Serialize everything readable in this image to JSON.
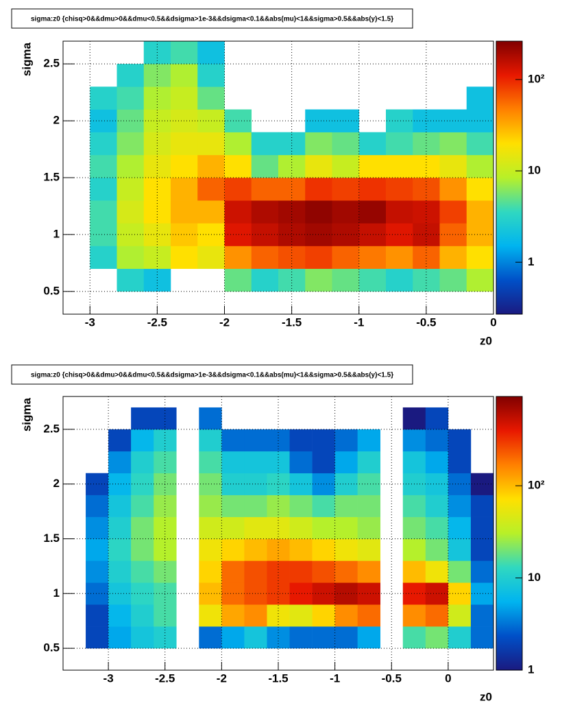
{
  "chart_data": [
    {
      "type": "heatmap",
      "title": "sigma:z0 {chisq>0&&dmu>0&&dmu<0.5&&dsigma>1e-3&&dsigma<0.1&&abs(mu)<1&&sigma>0.5&&abs(y)<1.5}",
      "x_label": "z0",
      "y_label": "sigma",
      "xlim": [
        -3.2,
        0
      ],
      "ylim": [
        0.3,
        2.7
      ],
      "zlim": [
        0.27,
        263
      ],
      "zlog": true,
      "grid": true,
      "xticks": [
        -3,
        -2.5,
        -2,
        -1.5,
        -1,
        -0.5,
        0
      ],
      "yticks": [
        0.5,
        1,
        1.5,
        2,
        2.5
      ],
      "zticks": [
        1,
        10,
        {
          "value": 100,
          "label": "10²"
        }
      ],
      "colors": [
        "#1a1a80",
        "#0050c8",
        "#00b4f0",
        "#30d8c0",
        "#b8f028",
        "#ffe000",
        "#ff8000",
        "#e81800",
        "#800000"
      ],
      "xbins": [
        -3.0,
        -2.8,
        -2.6,
        -2.4,
        -2.2,
        -2.0,
        -1.8,
        -1.6,
        -1.4,
        -1.2,
        -1.0,
        -0.8,
        -0.6,
        -0.4,
        -0.2,
        0.0
      ],
      "ybins": [
        0.5,
        0.7,
        0.9,
        1.1,
        1.3,
        1.5,
        1.7,
        1.9,
        2.1,
        2.3,
        2.5,
        2.7
      ],
      "values": [
        [
          null,
          3,
          2,
          null,
          null,
          5,
          3,
          4,
          6,
          5,
          4,
          3,
          4,
          5,
          8
        ],
        [
          3,
          8,
          10,
          20,
          15,
          40,
          60,
          70,
          80,
          60,
          50,
          40,
          60,
          30,
          20
        ],
        [
          4,
          10,
          15,
          25,
          20,
          120,
          150,
          180,
          200,
          180,
          150,
          120,
          150,
          60,
          30
        ],
        [
          4,
          12,
          20,
          30,
          30,
          140,
          180,
          200,
          230,
          200,
          220,
          150,
          140,
          80,
          30
        ],
        [
          3,
          10,
          20,
          30,
          60,
          80,
          60,
          60,
          90,
          80,
          90,
          80,
          70,
          40,
          20
        ],
        [
          4,
          8,
          15,
          20,
          30,
          20,
          5,
          8,
          15,
          10,
          20,
          20,
          20,
          15,
          8
        ],
        [
          3,
          6,
          12,
          15,
          15,
          8,
          3,
          3,
          6,
          5,
          3,
          4,
          5,
          6,
          4
        ],
        [
          2,
          5,
          10,
          12,
          10,
          4,
          null,
          null,
          2,
          2,
          null,
          3,
          2,
          2,
          2
        ],
        [
          3,
          4,
          8,
          10,
          5,
          null,
          null,
          null,
          null,
          null,
          null,
          null,
          null,
          null,
          2
        ],
        [
          null,
          3,
          6,
          8,
          3,
          null,
          null,
          null,
          null,
          null,
          null,
          null,
          null,
          null,
          null
        ],
        [
          null,
          null,
          3,
          4,
          2,
          null,
          null,
          null,
          null,
          null,
          null,
          null,
          null,
          null,
          null
        ]
      ]
    },
    {
      "type": "heatmap",
      "title": "sigma:z0 {chisq>0&&dmu>0&&dmu<0.5&&dsigma>1e-3&&dsigma<0.1&&abs(mu)<1&&sigma>0.5&&abs(y)<1.5}",
      "x_label": "z0",
      "y_label": "sigma",
      "xlim": [
        -3.4,
        0.4
      ],
      "ylim": [
        0.3,
        2.8
      ],
      "zlim": [
        1,
        930
      ],
      "zlog": true,
      "grid": true,
      "xticks": [
        -3,
        -2.5,
        -2,
        -1.5,
        -1,
        -0.5,
        0
      ],
      "yticks": [
        0.5,
        1,
        1.5,
        2,
        2.5
      ],
      "zticks": [
        1,
        10,
        {
          "value": 100,
          "label": "10²"
        }
      ],
      "colors": [
        "#1a1a80",
        "#0050c8",
        "#00b4f0",
        "#30d8c0",
        "#b8f028",
        "#ffe000",
        "#ff8000",
        "#e81800",
        "#800000"
      ],
      "xbins": [
        -3.2,
        -3.0,
        -2.8,
        -2.6,
        -2.4,
        -2.2,
        -2.0,
        -1.8,
        -1.6,
        -1.4,
        -1.2,
        -1.0,
        -0.8,
        -0.6,
        -0.4,
        -0.2,
        0.0,
        0.2,
        0.4
      ],
      "ybins": [
        0.5,
        0.7,
        0.9,
        1.1,
        1.3,
        1.5,
        1.7,
        1.9,
        2.1,
        2.3,
        2.5,
        2.7
      ],
      "values": [
        [
          2,
          5,
          8,
          10,
          null,
          3,
          5,
          8,
          4,
          3,
          3,
          3,
          5,
          null,
          15,
          20,
          10,
          3
        ],
        [
          2,
          6,
          10,
          15,
          null,
          60,
          120,
          150,
          60,
          50,
          80,
          150,
          200,
          null,
          150,
          200,
          40,
          3
        ],
        [
          3,
          8,
          12,
          15,
          null,
          100,
          200,
          250,
          300,
          400,
          500,
          600,
          500,
          null,
          400,
          500,
          80,
          5
        ],
        [
          4,
          10,
          15,
          20,
          null,
          80,
          200,
          250,
          300,
          300,
          250,
          200,
          150,
          null,
          100,
          60,
          20,
          3
        ],
        [
          5,
          12,
          20,
          30,
          null,
          60,
          80,
          100,
          120,
          100,
          80,
          60,
          50,
          null,
          30,
          20,
          8,
          2
        ],
        [
          4,
          10,
          20,
          30,
          null,
          40,
          40,
          50,
          50,
          40,
          30,
          30,
          25,
          null,
          20,
          15,
          6,
          2
        ],
        [
          3,
          8,
          15,
          25,
          null,
          25,
          20,
          20,
          25,
          20,
          15,
          20,
          20,
          null,
          15,
          10,
          4,
          2
        ],
        [
          2,
          6,
          12,
          20,
          null,
          20,
          10,
          10,
          12,
          8,
          4,
          10,
          15,
          null,
          10,
          8,
          3,
          1
        ],
        [
          null,
          4,
          10,
          15,
          null,
          15,
          8,
          8,
          8,
          3,
          2,
          5,
          10,
          null,
          8,
          5,
          2,
          null
        ],
        [
          null,
          2,
          6,
          10,
          null,
          10,
          3,
          3,
          3,
          2,
          2,
          3,
          5,
          null,
          4,
          3,
          2,
          null
        ],
        [
          null,
          null,
          2,
          2,
          null,
          3,
          null,
          null,
          null,
          null,
          null,
          null,
          null,
          null,
          1,
          2,
          null,
          null
        ]
      ]
    }
  ]
}
